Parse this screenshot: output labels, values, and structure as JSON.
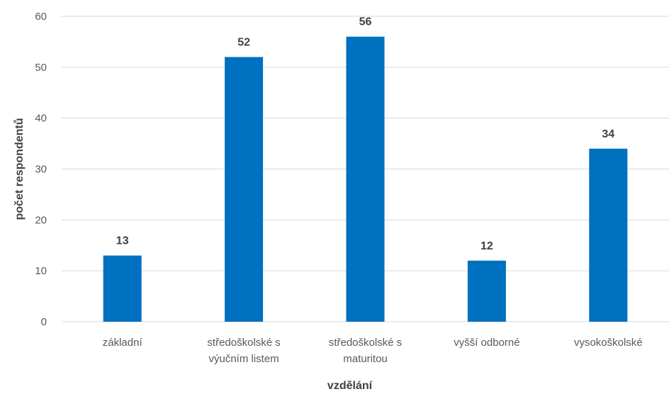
{
  "chart_data": {
    "type": "bar",
    "categories": [
      [
        "základní"
      ],
      [
        "středoškolské s",
        "výučním listem"
      ],
      [
        "středoškolské s",
        "maturitou"
      ],
      [
        "vyšší odborné"
      ],
      [
        "vysokoškolské"
      ]
    ],
    "values": [
      13,
      52,
      56,
      12,
      34
    ],
    "data_labels": [
      "13",
      "52",
      "56",
      "12",
      "34"
    ],
    "xlabel": "vzdělání",
    "ylabel": "počet respondentů",
    "ylim": [
      0,
      60
    ],
    "yticks": [
      "0",
      "10",
      "20",
      "30",
      "40",
      "50",
      "60"
    ],
    "grid": true,
    "legend": "none",
    "colors": {
      "bar": "#0070C0"
    }
  }
}
